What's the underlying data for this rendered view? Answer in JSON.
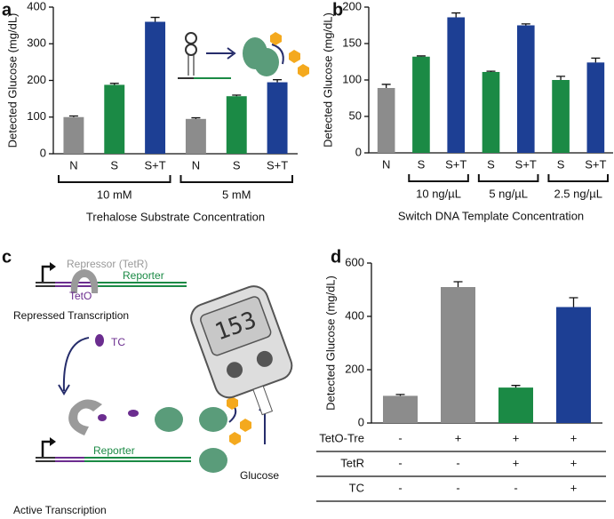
{
  "panel_labels": [
    "a",
    "b",
    "c",
    "d"
  ],
  "chart_data": [
    {
      "type": "bar",
      "y_label": "Detected Glucose (mg/dL)",
      "x_label": "Trehalose Substrate Concentration",
      "ylim": [
        0,
        400
      ],
      "yticks": [
        0,
        100,
        200,
        300,
        400
      ],
      "groups": [
        {
          "name": "10 mM",
          "categories": [
            "N",
            "S",
            "S+T"
          ],
          "values": [
            100,
            188,
            360
          ],
          "errors": [
            3,
            4,
            12
          ],
          "colors": [
            "#8c8c8c",
            "#1b8a45",
            "#1d3f94"
          ]
        },
        {
          "name": "5 mM",
          "categories": [
            "N",
            "S",
            "S+T"
          ],
          "values": [
            95,
            157,
            195
          ],
          "errors": [
            3,
            3,
            7
          ],
          "colors": [
            "#8c8c8c",
            "#1b8a45",
            "#1d3f94"
          ]
        }
      ]
    },
    {
      "type": "bar",
      "y_label": "Detected Glucose (mg/dL)",
      "x_label": "Switch DNA Template Concentration",
      "ylim": [
        0,
        200
      ],
      "yticks": [
        0,
        50,
        100,
        150,
        200
      ],
      "groups": [
        {
          "name": null,
          "categories": [
            "N"
          ],
          "values": [
            89
          ],
          "errors": [
            5
          ],
          "colors": [
            "#8c8c8c"
          ]
        },
        {
          "name": "10 ng/µL",
          "categories": [
            "S",
            "S+T"
          ],
          "values": [
            132,
            186
          ],
          "errors": [
            1,
            6
          ],
          "colors": [
            "#1b8a45",
            "#1d3f94"
          ]
        },
        {
          "name": "5 ng/µL",
          "categories": [
            "S",
            "S+T"
          ],
          "values": [
            111,
            175
          ],
          "errors": [
            1,
            2
          ],
          "colors": [
            "#1b8a45",
            "#1d3f94"
          ]
        },
        {
          "name": "2.5 ng/µL",
          "categories": [
            "S",
            "S+T"
          ],
          "values": [
            100,
            124
          ],
          "errors": [
            5,
            6
          ],
          "colors": [
            "#1b8a45",
            "#1d3f94"
          ]
        }
      ]
    },
    {
      "type": "bar",
      "y_label": "Detected Glucose (mg/dL)",
      "ylim": [
        0,
        600
      ],
      "yticks": [
        0,
        200,
        400,
        600
      ],
      "values": [
        102,
        510,
        133,
        435
      ],
      "errors": [
        5,
        20,
        8,
        35
      ],
      "colors": [
        "#8c8c8c",
        "#8c8c8c",
        "#1b8a45",
        "#1d3f94"
      ],
      "table": [
        {
          "label": "TetO-Tre",
          "cells": [
            "-",
            "+",
            "+",
            "+"
          ]
        },
        {
          "label": "TetR",
          "cells": [
            "-",
            "-",
            "+",
            "+"
          ]
        },
        {
          "label": "TC",
          "cells": [
            "-",
            "-",
            "-",
            "+"
          ]
        }
      ]
    }
  ],
  "diagram": {
    "repressor": "Repressor (TetR)",
    "reporter_top": "Reporter",
    "teto": "TetO",
    "repressed": "Repressed Transcription",
    "tc": "TC",
    "reporter_bottom": "Reporter",
    "active": "Active Transcription",
    "glucose": "Glucose",
    "meter_display": "153"
  }
}
